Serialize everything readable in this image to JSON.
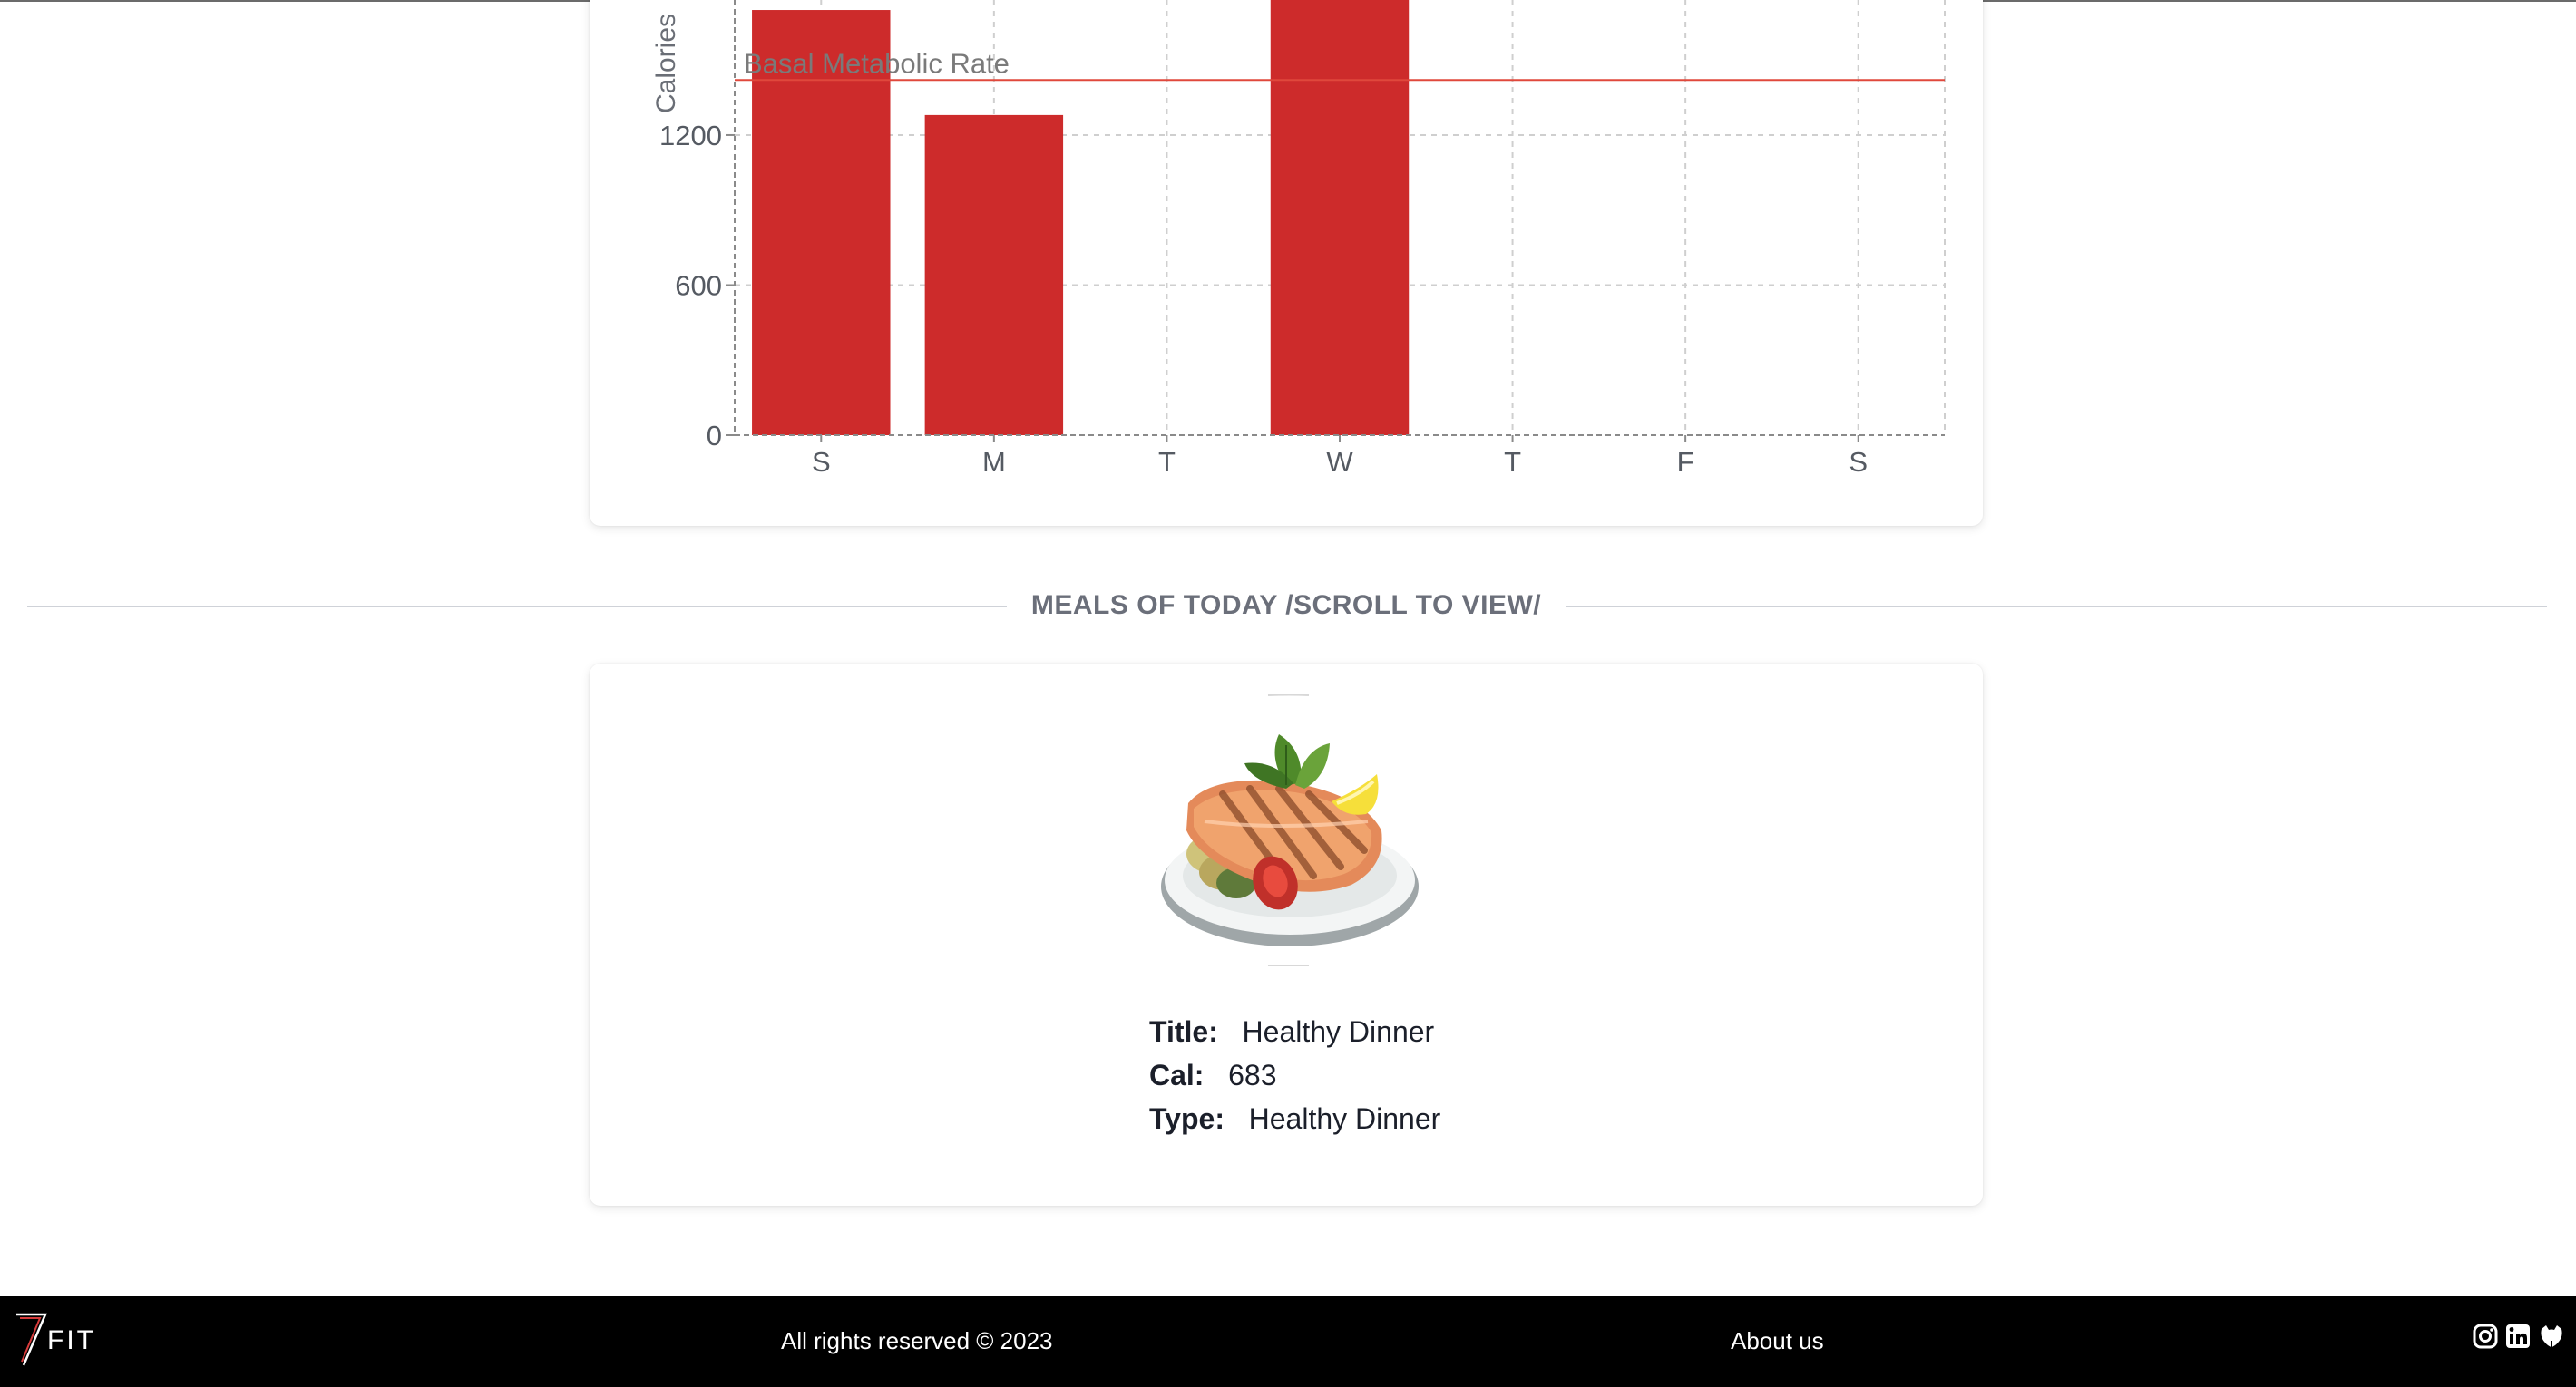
{
  "chart_data": {
    "type": "bar",
    "categories": [
      "S",
      "M",
      "T",
      "W",
      "T",
      "F",
      "S"
    ],
    "values": [
      1700,
      1280,
      0,
      1750,
      0,
      0,
      0
    ],
    "ylabel": "Calories",
    "yticks": [
      0,
      600,
      1200
    ],
    "ylim": [
      0,
      1740
    ],
    "grid": true,
    "reference_line": {
      "label": "Basal Metabolic Rate",
      "value": 1420
    },
    "colors": {
      "bar": "#cd2b2b",
      "reference_line": "#e0483c",
      "grid": "#cfcfcf",
      "axis": "#8a8a8a"
    }
  },
  "section": {
    "title": "MEALS OF TODAY /SCROLL TO VIEW/"
  },
  "meal": {
    "image_icon": "grilled-salmon-plate",
    "fields": [
      {
        "key": "Title:",
        "value": "Healthy Dinner"
      },
      {
        "key": "Cal:",
        "value": "683"
      },
      {
        "key": "Type:",
        "value": "Healthy Dinner"
      }
    ]
  },
  "footer": {
    "logo_number": "7",
    "logo_text": "FIT",
    "copyright": "All rights reserved © 2023",
    "about": "About us",
    "social": [
      "instagram-icon",
      "linkedin-icon",
      "github-icon"
    ]
  }
}
